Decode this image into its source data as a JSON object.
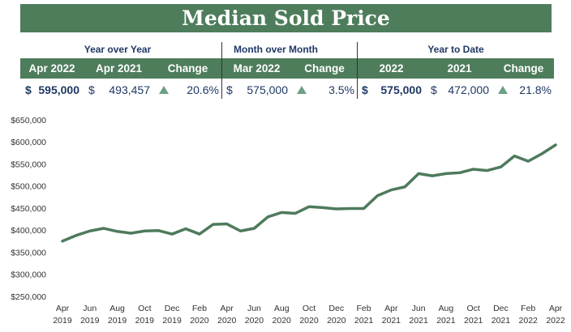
{
  "title": "Median Sold Price",
  "table": {
    "groups": [
      "Year over Year",
      "Month over Month",
      "Year to Date"
    ],
    "columns": [
      "Apr 2022",
      "Apr 2021",
      "Change",
      "Mar 2022",
      "Change",
      "2022",
      "2021",
      "Change"
    ],
    "row": [
      [
        "$",
        "595,000"
      ],
      [
        "$",
        "493,457"
      ],
      "20.6%",
      [
        "$",
        "575,000"
      ],
      "3.5%",
      [
        "$",
        "575,000"
      ],
      [
        "$",
        "472,000"
      ],
      "21.8%"
    ]
  },
  "chart_data": {
    "type": "line",
    "color": "#4e7a5c",
    "categories": [
      "Apr\n2019",
      null,
      "Jun\n2019",
      null,
      "Aug\n2019",
      null,
      "Oct\n2019",
      null,
      "Dec\n2019",
      null,
      "Feb\n2020",
      null,
      "Apr\n2020",
      null,
      "Jun\n2020",
      null,
      "Aug\n2020",
      null,
      "Oct\n2020",
      null,
      "Dec\n2020",
      null,
      "Feb\n2021",
      null,
      "Apr\n2021",
      null,
      "Jun\n2021",
      null,
      "Aug\n2021",
      null,
      "Oct\n2021",
      null,
      "Dec\n2021",
      null,
      "Feb\n2022",
      null,
      "Apr\n2022"
    ],
    "values": [
      377000,
      390000,
      400000,
      406000,
      399000,
      395000,
      400000,
      401000,
      393000,
      405000,
      393000,
      415000,
      416000,
      400000,
      406000,
      432000,
      442000,
      440000,
      455000,
      453000,
      450000,
      451000,
      451000,
      480000,
      493000,
      500000,
      530000,
      525000,
      530000,
      532000,
      540000,
      537000,
      545000,
      570000,
      558000,
      575000,
      595000
    ],
    "ylim": [
      250000,
      650000
    ],
    "yticks": [
      {
        "value": 250000,
        "label": "$250,000"
      },
      {
        "value": 300000,
        "label": "$300,000"
      },
      {
        "value": 350000,
        "label": "$350,000"
      },
      {
        "value": 400000,
        "label": "$400,000"
      },
      {
        "value": 450000,
        "label": "$450,000"
      },
      {
        "value": 500000,
        "label": "$500,000"
      },
      {
        "value": 550000,
        "label": "$550,000"
      },
      {
        "value": 600000,
        "label": "$600,000"
      },
      {
        "value": 650000,
        "label": "$650,000"
      }
    ],
    "grid": false
  }
}
